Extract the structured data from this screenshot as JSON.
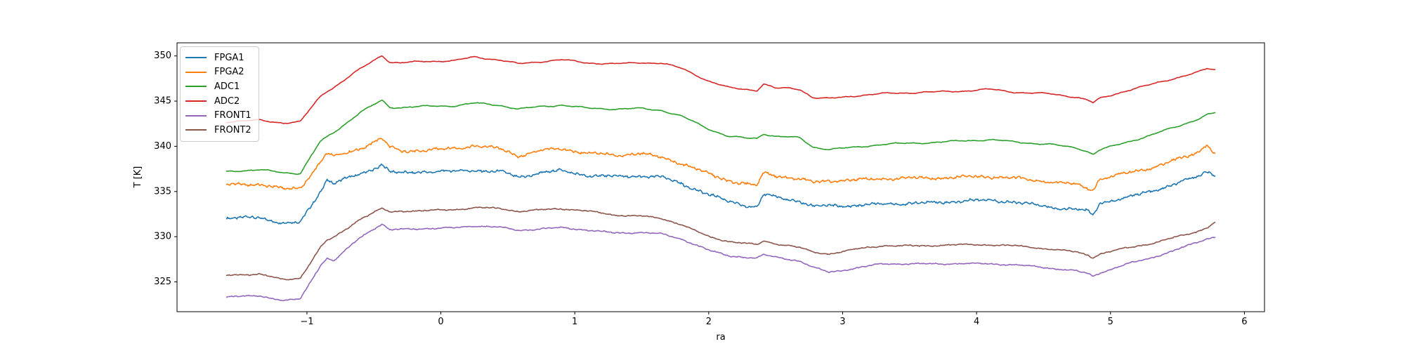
{
  "figure": {
    "background": "#ffffff"
  },
  "chart_data": {
    "type": "line",
    "title": "",
    "xlabel": "ra",
    "ylabel": "T [K]",
    "xlim": [
      -1.97,
      6.15
    ],
    "ylim": [
      321.7,
      351.45
    ],
    "xticks": [
      -1,
      0,
      1,
      2,
      3,
      4,
      5,
      6
    ],
    "yticks": [
      325,
      330,
      335,
      340,
      345,
      350
    ],
    "grid": false,
    "legend_position": "upper left",
    "x": [
      -1.6,
      -1.35,
      -1.17,
      -1.05,
      -0.9,
      -0.85,
      -0.8,
      -0.6,
      -0.44,
      -0.38,
      -0.3,
      -0.1,
      0.1,
      0.25,
      0.45,
      0.58,
      0.75,
      0.9,
      1.1,
      1.3,
      1.5,
      1.65,
      1.8,
      2.0,
      2.15,
      2.3,
      2.36,
      2.41,
      2.5,
      2.6,
      2.68,
      2.78,
      2.9,
      3.1,
      3.3,
      3.6,
      3.9,
      4.1,
      4.3,
      4.55,
      4.75,
      4.83,
      4.87,
      4.92,
      5.1,
      5.3,
      5.5,
      5.65,
      5.72,
      5.78
    ],
    "series": [
      {
        "name": "FPGA1",
        "color": "#1f77b4",
        "noise_wiggle": 0.18,
        "noise_jitter": 0.1,
        "values": [
          332.0,
          332.1,
          331.5,
          331.6,
          335.0,
          336.3,
          335.9,
          336.9,
          338.0,
          337.3,
          337.0,
          337.2,
          337.2,
          337.4,
          337.2,
          336.5,
          337.1,
          337.3,
          336.8,
          336.6,
          336.7,
          336.6,
          335.9,
          334.6,
          333.9,
          333.4,
          333.3,
          334.7,
          334.4,
          334.1,
          333.9,
          333.3,
          333.4,
          333.5,
          333.6,
          333.7,
          334.0,
          334.0,
          333.8,
          333.3,
          333.0,
          332.8,
          332.3,
          333.7,
          334.3,
          335.0,
          335.9,
          336.6,
          337.2,
          336.9
        ]
      },
      {
        "name": "FPGA2",
        "color": "#ff7f0e",
        "noise_wiggle": 0.18,
        "noise_jitter": 0.1,
        "values": [
          335.7,
          335.8,
          335.3,
          335.4,
          338.2,
          339.2,
          338.8,
          339.8,
          340.9,
          339.9,
          339.5,
          339.5,
          339.8,
          340.1,
          339.7,
          338.9,
          339.5,
          339.8,
          339.2,
          339.0,
          339.2,
          338.8,
          338.1,
          336.9,
          336.2,
          335.8,
          335.7,
          337.1,
          336.8,
          336.5,
          336.3,
          336.0,
          336.2,
          336.3,
          336.4,
          336.5,
          336.6,
          336.6,
          336.5,
          336.1,
          335.7,
          335.3,
          335.2,
          336.4,
          337.0,
          337.6,
          338.5,
          339.3,
          340.3,
          339.1
        ]
      },
      {
        "name": "ADC1",
        "color": "#2ca02c",
        "noise_wiggle": 0.12,
        "noise_jitter": 0.02,
        "values": [
          337.2,
          337.4,
          337.1,
          337.0,
          340.5,
          341.0,
          341.5,
          343.8,
          345.1,
          344.3,
          344.3,
          344.4,
          344.5,
          344.8,
          344.5,
          344.1,
          344.4,
          344.6,
          344.2,
          344.1,
          344.2,
          344.0,
          343.3,
          341.9,
          341.1,
          340.9,
          340.9,
          341.4,
          341.1,
          341.0,
          340.9,
          339.9,
          339.7,
          339.9,
          340.2,
          340.4,
          340.6,
          340.7,
          340.5,
          340.2,
          339.8,
          339.4,
          339.1,
          339.6,
          340.4,
          341.2,
          342.2,
          343.0,
          343.5,
          343.7
        ]
      },
      {
        "name": "ADC2",
        "color": "#d62728",
        "noise_wiggle": 0.12,
        "noise_jitter": 0.02,
        "values": [
          342.7,
          342.9,
          342.6,
          342.7,
          345.5,
          346.1,
          346.5,
          348.6,
          350.1,
          349.3,
          349.2,
          349.4,
          349.5,
          349.9,
          349.5,
          349.1,
          349.4,
          349.6,
          349.2,
          349.1,
          349.3,
          349.2,
          348.6,
          347.2,
          346.5,
          346.3,
          346.2,
          346.9,
          346.4,
          346.4,
          346.3,
          345.4,
          345.3,
          345.6,
          345.8,
          346.0,
          346.1,
          346.3,
          346.0,
          345.8,
          345.4,
          345.1,
          344.8,
          345.3,
          346.1,
          346.8,
          347.6,
          348.2,
          348.6,
          348.5
        ]
      },
      {
        "name": "FRONT1",
        "color": "#9467bd",
        "noise_wiggle": 0.1,
        "noise_jitter": 0.04,
        "values": [
          323.3,
          323.5,
          322.9,
          323.1,
          326.8,
          327.6,
          327.3,
          330.0,
          331.4,
          330.7,
          330.8,
          330.9,
          331.0,
          331.2,
          331.0,
          330.7,
          330.9,
          331.0,
          330.7,
          330.4,
          330.5,
          330.3,
          329.7,
          328.5,
          327.9,
          327.7,
          327.6,
          328.0,
          327.7,
          327.5,
          327.3,
          326.6,
          326.1,
          326.5,
          327.0,
          327.0,
          327.0,
          327.0,
          326.9,
          326.5,
          326.2,
          325.9,
          325.6,
          326.0,
          326.9,
          327.6,
          328.6,
          329.4,
          329.8,
          330.0
        ]
      },
      {
        "name": "FRONT2",
        "color": "#8c564b",
        "noise_wiggle": 0.1,
        "noise_jitter": 0.04,
        "values": [
          325.7,
          325.9,
          325.2,
          325.4,
          328.8,
          329.6,
          329.9,
          332.0,
          333.1,
          332.7,
          332.8,
          332.9,
          333.0,
          333.2,
          333.1,
          332.8,
          333.0,
          333.1,
          332.8,
          332.4,
          332.3,
          332.0,
          331.3,
          330.0,
          329.5,
          329.2,
          329.1,
          329.5,
          329.2,
          329.0,
          328.8,
          328.3,
          328.1,
          328.6,
          329.0,
          329.0,
          329.1,
          329.1,
          329.0,
          328.6,
          328.3,
          328.0,
          327.7,
          328.1,
          328.7,
          329.2,
          330.0,
          330.6,
          331.0,
          331.6
        ]
      }
    ]
  }
}
